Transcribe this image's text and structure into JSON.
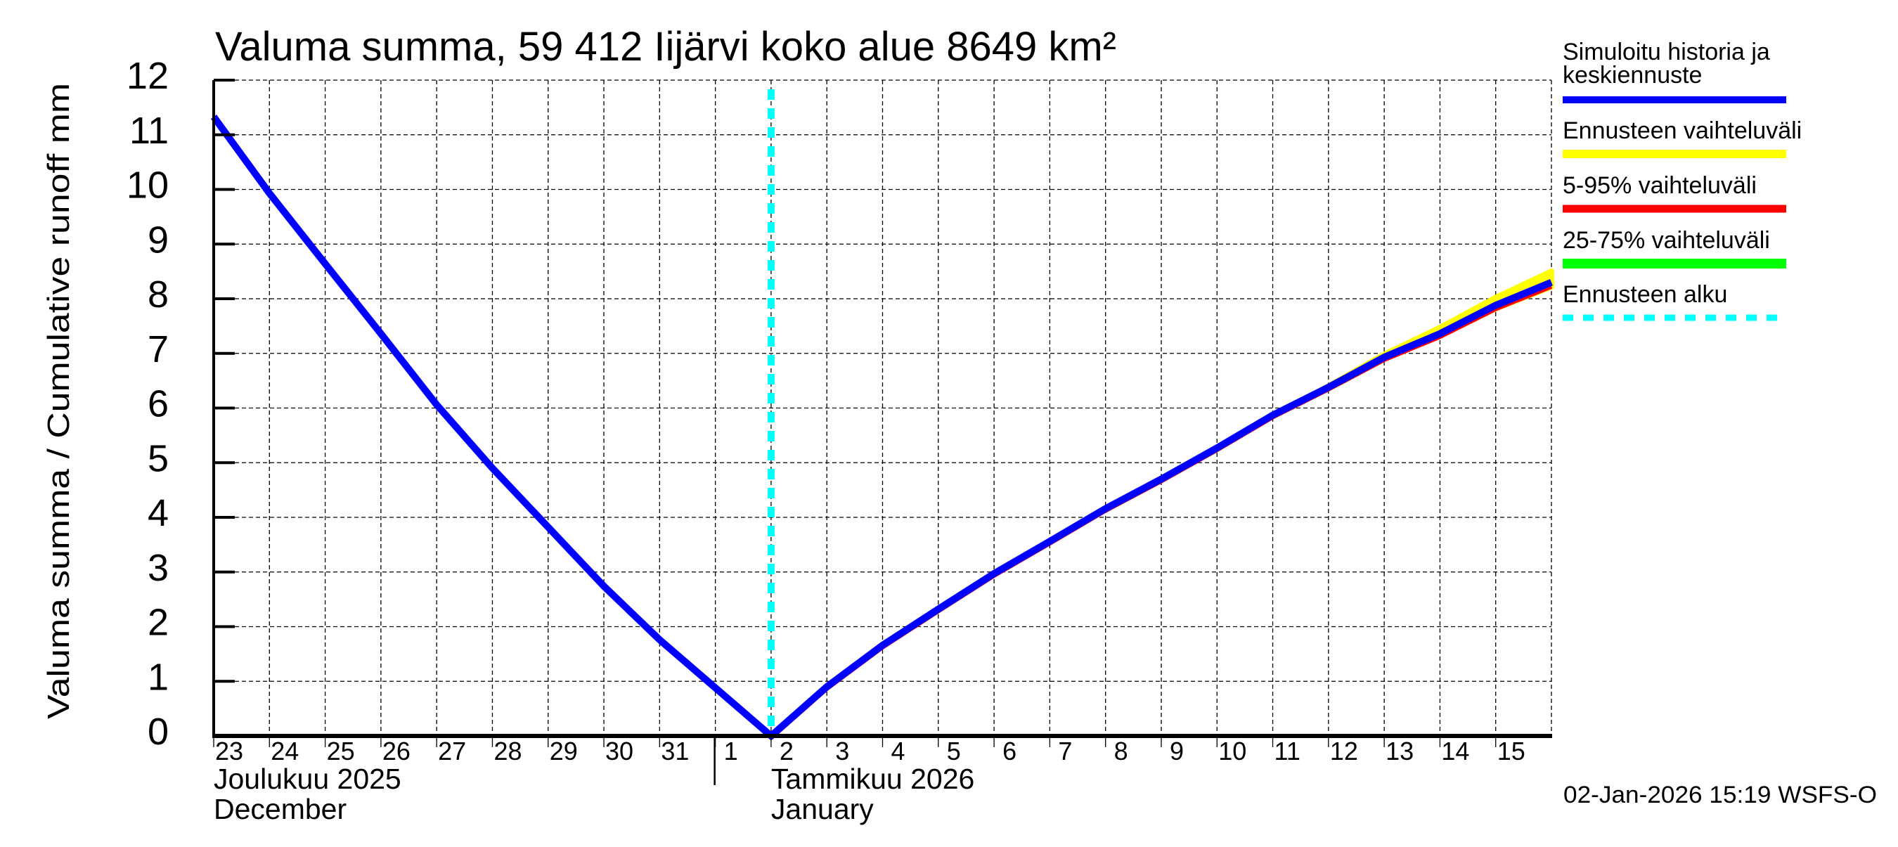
{
  "title": "Valuma summa, 59 412 Iijärvi koko alue 8649 km²",
  "y_axis_label": "Valuma summa / Cumulative runoff    mm",
  "timestamp": "02-Jan-2026 15:19 WSFS-O",
  "months": [
    {
      "fi": "Joulukuu  2025",
      "en": "December",
      "start_day_index": 0
    },
    {
      "fi": "Tammikuu  2026",
      "en": "January",
      "start_day_index": 10
    }
  ],
  "colors": {
    "median": "#0000ff",
    "forecast_range": "#ffff00",
    "p5_95": "#ff0000",
    "p25_75": "#00ff00",
    "forecast_start": "#00ffff",
    "grid": "#000000"
  },
  "legend": [
    {
      "label_lines": [
        "Simuloitu historia ja",
        "keskiennuste"
      ],
      "color": "#0000ff",
      "style": "solid"
    },
    {
      "label_lines": [
        "Ennusteen vaihteluväli"
      ],
      "color": "#ffff00",
      "style": "solid"
    },
    {
      "label_lines": [
        "5-95% vaihteluväli"
      ],
      "color": "#ff0000",
      "style": "solid"
    },
    {
      "label_lines": [
        "25-75% vaihteluväli"
      ],
      "color": "#00ff00",
      "style": "solid"
    },
    {
      "label_lines": [
        "Ennusteen alku"
      ],
      "color": "#00ffff",
      "style": "dashed"
    }
  ],
  "chart_data": {
    "type": "line",
    "title": "Valuma summa, 59 412 Iijärvi koko alue 8649 km²",
    "xlabel": "Joulukuu 2025 / December — Tammikuu 2026 / January",
    "ylabel": "Valuma summa / Cumulative runoff mm",
    "ylim": [
      0,
      12
    ],
    "yticks": [
      0,
      1,
      2,
      3,
      4,
      5,
      6,
      7,
      8,
      9,
      10,
      11,
      12
    ],
    "grid": true,
    "legend_position": "right",
    "x_tick_labels": [
      "23",
      "24",
      "25",
      "26",
      "27",
      "28",
      "29",
      "30",
      "31",
      "1",
      "2",
      "3",
      "4",
      "5",
      "6",
      "7",
      "8",
      "9",
      "10",
      "11",
      "12",
      "13",
      "14",
      "15"
    ],
    "x_range_days": [
      0,
      24
    ],
    "forecast_start_day": 10,
    "x": [
      "2025-12-23",
      "2025-12-24",
      "2025-12-25",
      "2025-12-26",
      "2025-12-27",
      "2025-12-28",
      "2025-12-29",
      "2025-12-30",
      "2025-12-31",
      "2026-01-01",
      "2026-01-02",
      "2026-01-03",
      "2026-01-04",
      "2026-01-05",
      "2026-01-06",
      "2026-01-07",
      "2026-01-08",
      "2026-01-09",
      "2026-01-10",
      "2026-01-11",
      "2026-01-12",
      "2026-01-13",
      "2026-01-14",
      "2026-01-15",
      "2026-01-16"
    ],
    "series": [
      {
        "name": "Simuloitu historia ja keskiennuste",
        "color": "#0000ff",
        "values": [
          11.33,
          9.93,
          8.64,
          7.36,
          6.06,
          4.9,
          3.82,
          2.74,
          1.76,
          0.88,
          0.0,
          0.9,
          1.66,
          2.32,
          2.97,
          3.56,
          4.16,
          4.7,
          5.27,
          5.87,
          6.38,
          6.93,
          7.36,
          7.88,
          8.3
        ]
      },
      {
        "name": "Ennusteen vaihteluväli (upper)",
        "color": "#ffff00",
        "start_index": 10,
        "values": [
          0.0,
          0.9,
          1.66,
          2.32,
          2.97,
          3.56,
          4.16,
          4.7,
          5.27,
          5.87,
          6.4,
          6.98,
          7.47,
          8.02,
          8.5
        ]
      },
      {
        "name": "Ennusteen vaihteluväli (lower)",
        "color": "#ffff00",
        "start_index": 10,
        "values": [
          0.0,
          0.9,
          1.66,
          2.32,
          2.97,
          3.56,
          4.16,
          4.7,
          5.27,
          5.87,
          6.37,
          6.91,
          7.32,
          7.82,
          8.22
        ]
      },
      {
        "name": "5-95% vaihteluväli",
        "color": "#ff0000",
        "start_index": 10,
        "values": [
          0.0,
          0.9,
          1.66,
          2.32,
          2.97,
          3.56,
          4.16,
          4.7,
          5.27,
          5.87,
          6.38,
          6.92,
          7.34,
          7.85,
          8.26
        ]
      },
      {
        "name": "Ennusteen alku",
        "color": "#00ffff",
        "type": "vline",
        "x": "2026-01-02"
      }
    ]
  }
}
